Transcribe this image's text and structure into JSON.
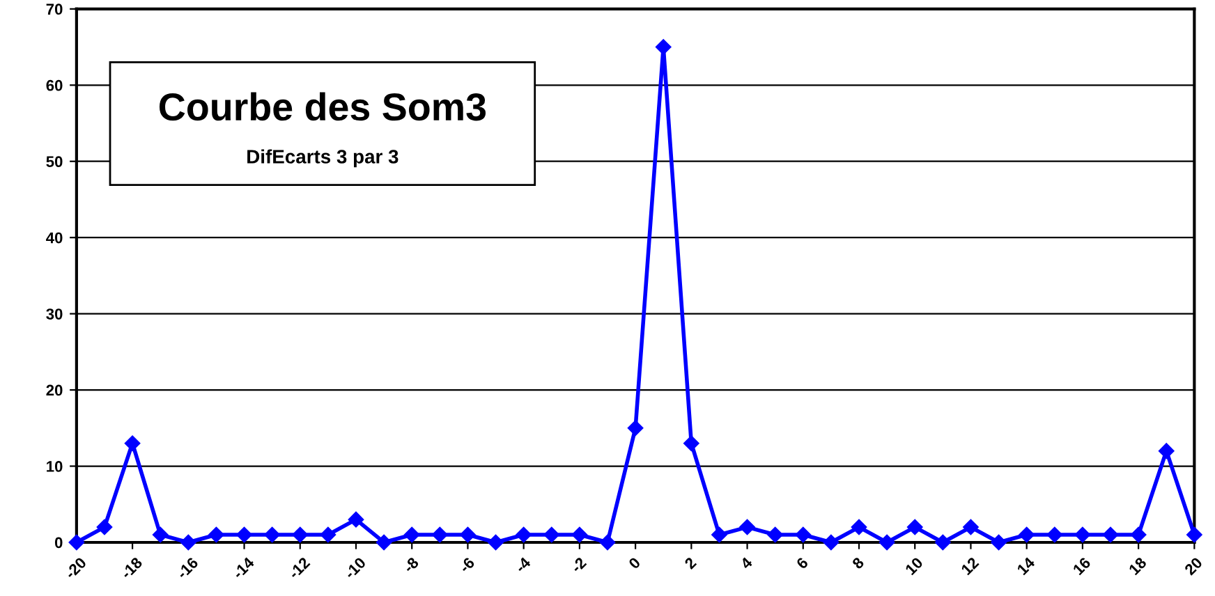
{
  "chart_data": {
    "type": "line",
    "title": "Courbe des Som3",
    "subtitle": "DifEcarts 3 par 3",
    "x": [
      -20,
      -19,
      -18,
      -17,
      -16,
      -15,
      -14,
      -13,
      -12,
      -11,
      -10,
      -9,
      -8,
      -7,
      -6,
      -5,
      -4,
      -3,
      -2,
      -1,
      0,
      1,
      2,
      3,
      4,
      5,
      6,
      7,
      8,
      9,
      10,
      11,
      12,
      13,
      14,
      15,
      16,
      17,
      18,
      19,
      20
    ],
    "series": [
      {
        "color": "#0000ff",
        "values": [
          0,
          2,
          13,
          1,
          0,
          1,
          1,
          1,
          1,
          1,
          3,
          0,
          1,
          1,
          1,
          0,
          1,
          1,
          1,
          0,
          15,
          65,
          13,
          1,
          2,
          1,
          1,
          0,
          2,
          0,
          2,
          0,
          2,
          0,
          1,
          1,
          1,
          1,
          1,
          12,
          1
        ]
      }
    ],
    "xlim": [
      -20,
      20
    ],
    "xticks": [
      -20,
      -18,
      -16,
      -14,
      -12,
      -10,
      -8,
      -6,
      -4,
      -2,
      0,
      2,
      4,
      6,
      8,
      10,
      12,
      14,
      16,
      18,
      20
    ],
    "ylim": [
      0,
      70
    ],
    "yticks": [
      0,
      10,
      20,
      30,
      40,
      50,
      60,
      70
    ],
    "grid": "y",
    "marker": "diamond",
    "line_style": "solid",
    "legend": false
  }
}
